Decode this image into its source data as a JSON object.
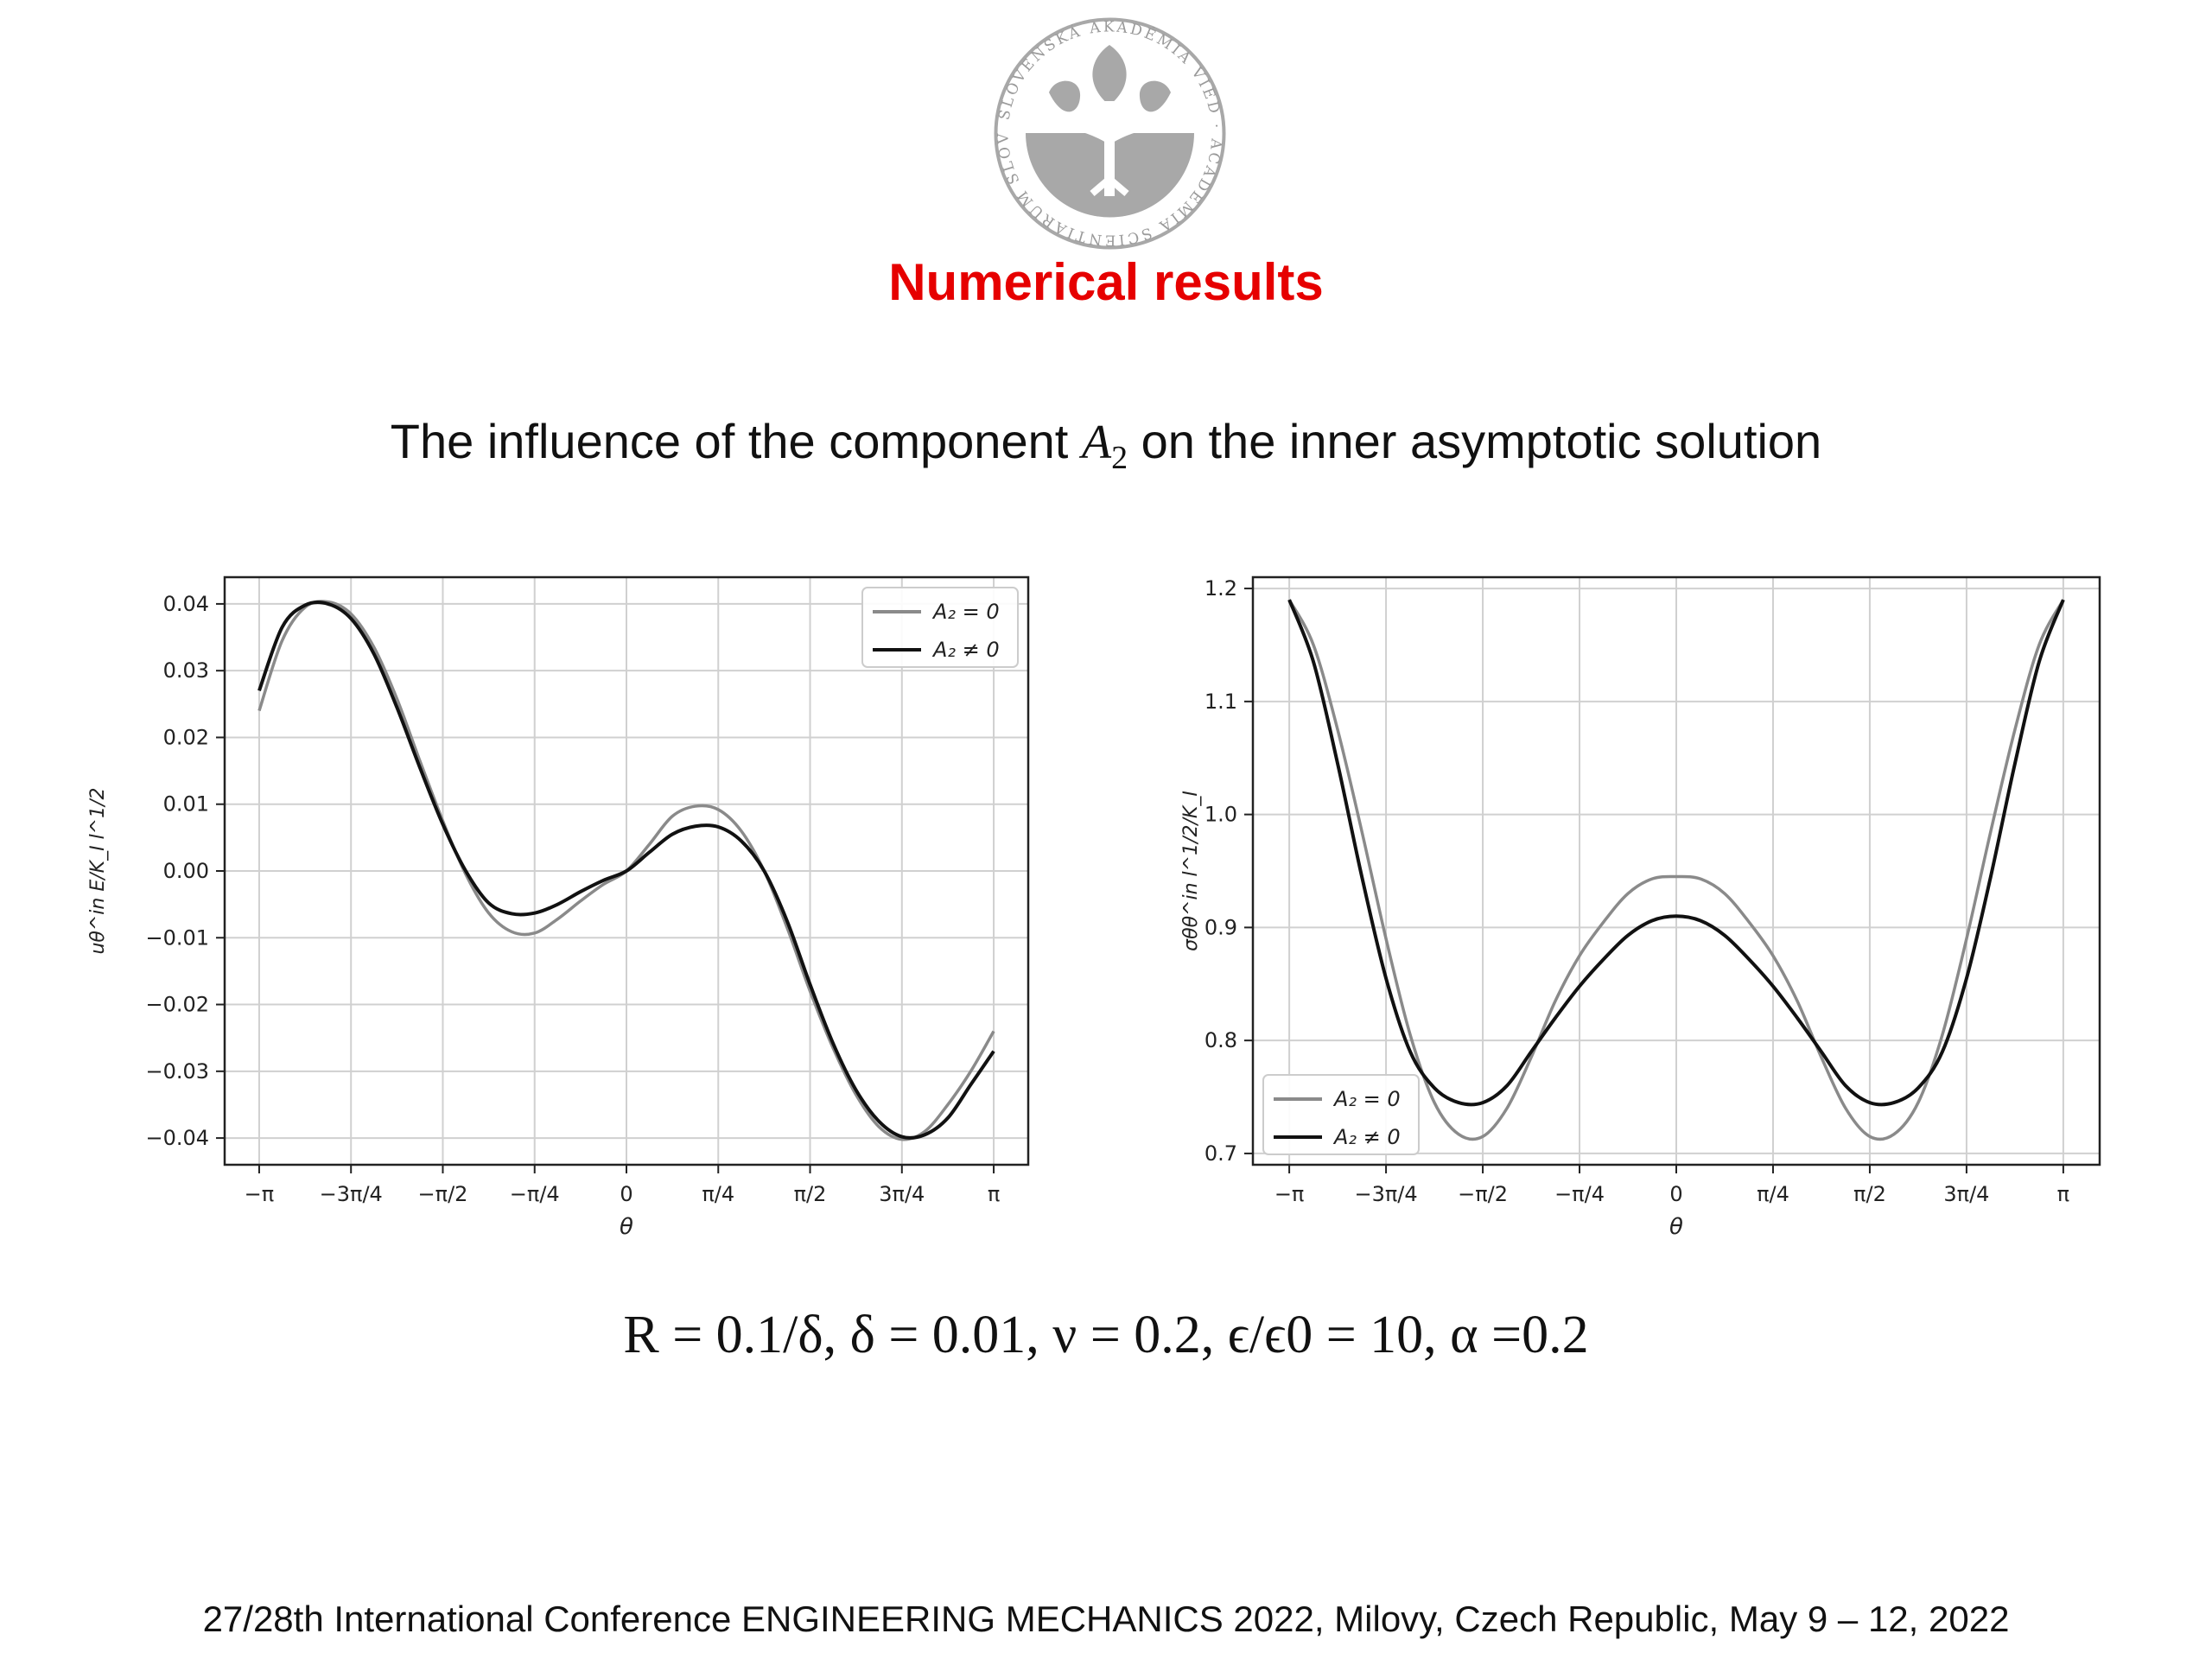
{
  "slide": {
    "title": "Numerical results",
    "subtitle_prefix": "The influence of the component ",
    "subtitle_math": "A",
    "subtitle_sub": "2",
    "subtitle_suffix": " on the inner asymptotic solution",
    "params": "R = 0.1/δ, δ = 0.01, ν = 0.2, ϵ/ϵ0 = 10, α =0.2",
    "footer": "27/28th International Conference ENGINEERING MECHANICS 2022, Milovy, Czech Republic, May 9 – 12, 2022",
    "logo_text": "SLOVENSKÁ AKADÉMIA VIED · ACADEMIA SCIENTIARUM SLOVACA"
  },
  "colors": {
    "title": "#e60000",
    "series_a2_zero": "#8a8a8a",
    "series_a2_nonzero": "#111111",
    "grid": "#d0d0d0",
    "logo": "#a8a8a8"
  },
  "chart_data": [
    {
      "type": "line",
      "xlabel": "θ",
      "ylabel": "uθ^in E/K_I l^1/2",
      "xlim": [
        -3.1416,
        3.1416
      ],
      "ylim": [
        -0.044,
        0.044
      ],
      "xticks": [
        {
          "value": -3.1416,
          "label": "−π"
        },
        {
          "value": -2.3562,
          "label": "−3π/4"
        },
        {
          "value": -1.5708,
          "label": "−π/2"
        },
        {
          "value": -0.7854,
          "label": "−π/4"
        },
        {
          "value": 0,
          "label": "0"
        },
        {
          "value": 0.7854,
          "label": "π/4"
        },
        {
          "value": 1.5708,
          "label": "π/2"
        },
        {
          "value": 2.3562,
          "label": "3π/4"
        },
        {
          "value": 3.1416,
          "label": "π"
        }
      ],
      "yticks": [
        {
          "value": 0.04,
          "label": "0.04"
        },
        {
          "value": 0.03,
          "label": "0.03"
        },
        {
          "value": 0.02,
          "label": "0.02"
        },
        {
          "value": 0.01,
          "label": "0.01"
        },
        {
          "value": 0.0,
          "label": "0.00"
        },
        {
          "value": -0.01,
          "label": "−0.01"
        },
        {
          "value": -0.02,
          "label": "−0.02"
        },
        {
          "value": -0.03,
          "label": "−0.03"
        },
        {
          "value": -0.04,
          "label": "−0.04"
        }
      ],
      "grid": true,
      "legend_position": "top-right",
      "series": [
        {
          "name": "A₂ = 0",
          "color": "#8a8a8a",
          "x": [
            -3.1416,
            -2.9452,
            -2.7489,
            -2.5525,
            -2.3562,
            -2.1598,
            -1.9635,
            -1.7671,
            -1.5708,
            -1.3744,
            -1.1781,
            -0.9817,
            -0.7854,
            -0.589,
            -0.3927,
            -0.1963,
            0,
            0.1963,
            0.3927,
            0.589,
            0.7854,
            0.9817,
            1.1781,
            1.3744,
            1.5708,
            1.7671,
            1.9635,
            2.1598,
            2.3562,
            2.5525,
            2.7489,
            2.9452,
            3.1416
          ],
          "y": [
            0.024,
            0.0345,
            0.0395,
            0.0403,
            0.0385,
            0.0335,
            0.0258,
            0.0165,
            0.0075,
            -0.0005,
            -0.0063,
            -0.0091,
            -0.0093,
            -0.0072,
            -0.0045,
            -0.002,
            0.0,
            0.004,
            0.0082,
            0.0097,
            0.0092,
            0.006,
            0.0,
            -0.0085,
            -0.018,
            -0.0265,
            -0.0335,
            -0.0383,
            -0.0402,
            -0.039,
            -0.035,
            -0.03,
            -0.024
          ]
        },
        {
          "name": "A₂ ≠ 0",
          "color": "#111111",
          "x": [
            -3.1416,
            -2.9452,
            -2.7489,
            -2.5525,
            -2.3562,
            -2.1598,
            -1.9635,
            -1.7671,
            -1.5708,
            -1.3744,
            -1.1781,
            -0.9817,
            -0.7854,
            -0.589,
            -0.3927,
            -0.1963,
            0,
            0.1963,
            0.3927,
            0.589,
            0.7854,
            0.9817,
            1.1781,
            1.3744,
            1.5708,
            1.7671,
            1.9635,
            2.1598,
            2.3562,
            2.5525,
            2.7489,
            2.9452,
            3.1416
          ],
          "y": [
            0.027,
            0.0365,
            0.0398,
            0.04,
            0.0378,
            0.0325,
            0.0245,
            0.0155,
            0.007,
            0.0,
            -0.0048,
            -0.0064,
            -0.0063,
            -0.005,
            -0.0031,
            -0.0014,
            0.0,
            0.0028,
            0.0055,
            0.0067,
            0.0066,
            0.0045,
            0.0,
            -0.0075,
            -0.017,
            -0.0258,
            -0.0328,
            -0.0375,
            -0.0398,
            -0.0395,
            -0.037,
            -0.032,
            -0.027
          ]
        }
      ]
    },
    {
      "type": "line",
      "xlabel": "θ",
      "ylabel": "σθθ^in l^1/2/K_I",
      "xlim": [
        -3.1416,
        3.1416
      ],
      "ylim": [
        0.69,
        1.21
      ],
      "xticks": [
        {
          "value": -3.1416,
          "label": "−π"
        },
        {
          "value": -2.3562,
          "label": "−3π/4"
        },
        {
          "value": -1.5708,
          "label": "−π/2"
        },
        {
          "value": -0.7854,
          "label": "−π/4"
        },
        {
          "value": 0,
          "label": "0"
        },
        {
          "value": 0.7854,
          "label": "π/4"
        },
        {
          "value": 1.5708,
          "label": "π/2"
        },
        {
          "value": 2.3562,
          "label": "3π/4"
        },
        {
          "value": 3.1416,
          "label": "π"
        }
      ],
      "yticks": [
        {
          "value": 1.2,
          "label": "1.2"
        },
        {
          "value": 1.1,
          "label": "1.1"
        },
        {
          "value": 1.0,
          "label": "1.0"
        },
        {
          "value": 0.9,
          "label": "0.9"
        },
        {
          "value": 0.8,
          "label": "0.8"
        },
        {
          "value": 0.7,
          "label": "0.7"
        }
      ],
      "grid": true,
      "legend_position": "bottom-left",
      "series": [
        {
          "name": "A₂ = 0",
          "color": "#8a8a8a",
          "x": [
            -3.1416,
            -2.9452,
            -2.7489,
            -2.5525,
            -2.3562,
            -2.1598,
            -1.9635,
            -1.7671,
            -1.5708,
            -1.3744,
            -1.1781,
            -0.9817,
            -0.7854,
            -0.589,
            -0.3927,
            -0.1963,
            0,
            0.1963,
            0.3927,
            0.589,
            0.7854,
            0.9817,
            1.1781,
            1.3744,
            1.5708,
            1.7671,
            1.9635,
            2.1598,
            2.3562,
            2.5525,
            2.7489,
            2.9452,
            3.1416
          ],
          "y": [
            1.19,
            1.15,
            1.075,
            0.985,
            0.89,
            0.805,
            0.745,
            0.717,
            0.715,
            0.74,
            0.785,
            0.835,
            0.875,
            0.905,
            0.93,
            0.943,
            0.945,
            0.943,
            0.93,
            0.905,
            0.875,
            0.835,
            0.785,
            0.74,
            0.715,
            0.717,
            0.745,
            0.805,
            0.89,
            0.985,
            1.075,
            1.15,
            1.19
          ]
        },
        {
          "name": "A₂ ≠ 0",
          "color": "#111111",
          "x": [
            -3.1416,
            -2.9452,
            -2.7489,
            -2.5525,
            -2.3562,
            -2.1598,
            -1.9635,
            -1.7671,
            -1.5708,
            -1.3744,
            -1.1781,
            -0.9817,
            -0.7854,
            -0.589,
            -0.3927,
            -0.1963,
            0,
            0.1963,
            0.3927,
            0.589,
            0.7854,
            0.9817,
            1.1781,
            1.3744,
            1.5708,
            1.7671,
            1.9635,
            2.1598,
            2.3562,
            2.5525,
            2.7489,
            2.9452,
            3.1416
          ],
          "y": [
            1.19,
            1.135,
            1.045,
            0.945,
            0.855,
            0.79,
            0.758,
            0.745,
            0.745,
            0.76,
            0.79,
            0.82,
            0.848,
            0.872,
            0.893,
            0.906,
            0.91,
            0.906,
            0.893,
            0.872,
            0.848,
            0.82,
            0.79,
            0.76,
            0.745,
            0.745,
            0.758,
            0.79,
            0.855,
            0.945,
            1.045,
            1.135,
            1.19
          ]
        }
      ]
    }
  ]
}
